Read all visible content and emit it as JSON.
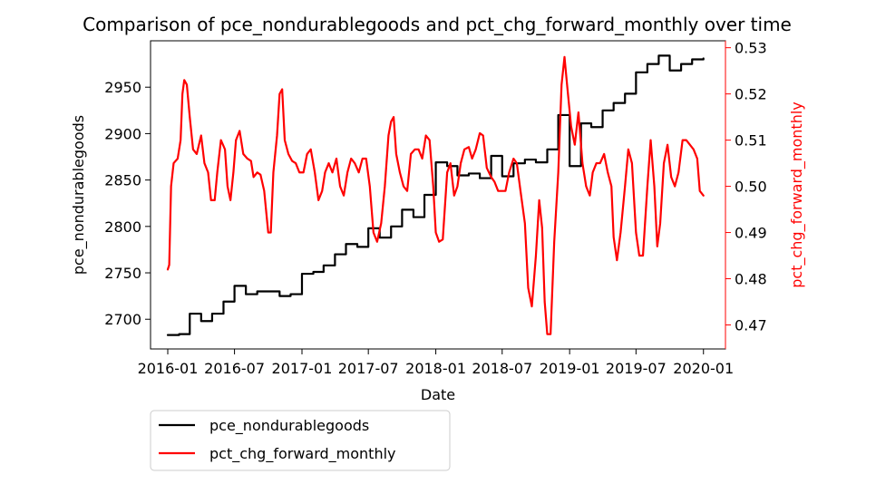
{
  "chart_data": {
    "type": "line",
    "title": "Comparison of pce_nondurablegoods and pct_chg_forward_monthly over time",
    "xlabel": "Date",
    "ylabel_left": "pce_nondurablegoods",
    "ylabel_right": "pct_chg_forward_monthly",
    "x_range": [
      "2015-11-15",
      "2020-03-01"
    ],
    "ylim_left": [
      2668,
      3000
    ],
    "ylim_right": [
      0.4648,
      0.5315
    ],
    "x_ticks": [
      "2016-01",
      "2016-07",
      "2017-01",
      "2017-07",
      "2018-01",
      "2018-07",
      "2019-01",
      "2019-07",
      "2020-01"
    ],
    "y_ticks_left": [
      2700,
      2750,
      2800,
      2850,
      2900,
      2950
    ],
    "y_ticks_right": [
      0.47,
      0.48,
      0.49,
      0.5,
      0.51,
      0.52,
      0.53
    ],
    "grid": false,
    "legend_position": "below-left",
    "colors": {
      "left_series": "#000000",
      "right_series": "#ff0000",
      "right_axis": "#ff0000"
    },
    "series": [
      {
        "name": "pce_nondurablegoods",
        "axis": "left",
        "step": true,
        "points": [
          [
            "2016-01-01",
            2683
          ],
          [
            "2016-02-01",
            2684
          ],
          [
            "2016-03-01",
            2706
          ],
          [
            "2016-04-01",
            2698
          ],
          [
            "2016-05-01",
            2706
          ],
          [
            "2016-06-01",
            2719
          ],
          [
            "2016-07-01",
            2736
          ],
          [
            "2016-08-01",
            2727
          ],
          [
            "2016-09-01",
            2730
          ],
          [
            "2016-10-01",
            2730
          ],
          [
            "2016-11-01",
            2725
          ],
          [
            "2016-12-01",
            2727
          ],
          [
            "2017-01-01",
            2749
          ],
          [
            "2017-02-01",
            2751
          ],
          [
            "2017-03-01",
            2758
          ],
          [
            "2017-04-01",
            2770
          ],
          [
            "2017-05-01",
            2781
          ],
          [
            "2017-06-01",
            2778
          ],
          [
            "2017-07-01",
            2798
          ],
          [
            "2017-08-01",
            2788
          ],
          [
            "2017-09-01",
            2800
          ],
          [
            "2017-10-01",
            2818
          ],
          [
            "2017-11-01",
            2810
          ],
          [
            "2017-12-01",
            2834
          ],
          [
            "2018-01-01",
            2869
          ],
          [
            "2018-02-01",
            2865
          ],
          [
            "2018-03-01",
            2855
          ],
          [
            "2018-04-01",
            2857
          ],
          [
            "2018-05-01",
            2852
          ],
          [
            "2018-06-01",
            2876
          ],
          [
            "2018-07-01",
            2854
          ],
          [
            "2018-08-01",
            2868
          ],
          [
            "2018-09-01",
            2872
          ],
          [
            "2018-10-01",
            2869
          ],
          [
            "2018-11-01",
            2883
          ],
          [
            "2018-12-01",
            2920
          ],
          [
            "2019-01-01",
            2865
          ],
          [
            "2019-02-01",
            2911
          ],
          [
            "2019-03-01",
            2907
          ],
          [
            "2019-04-01",
            2925
          ],
          [
            "2019-05-01",
            2933
          ],
          [
            "2019-06-01",
            2943
          ],
          [
            "2019-07-01",
            2966
          ],
          [
            "2019-08-01",
            2975
          ],
          [
            "2019-09-01",
            2984
          ],
          [
            "2019-10-01",
            2968
          ],
          [
            "2019-11-01",
            2975
          ],
          [
            "2019-12-01",
            2980
          ],
          [
            "2020-01-01",
            2981
          ]
        ]
      },
      {
        "name": "pct_chg_forward_monthly",
        "axis": "right",
        "step": false,
        "points": [
          [
            "2016-01-01",
            0.482
          ],
          [
            "2016-01-05",
            0.483
          ],
          [
            "2016-01-10",
            0.5
          ],
          [
            "2016-01-17",
            0.505
          ],
          [
            "2016-01-28",
            0.506
          ],
          [
            "2016-02-05",
            0.51
          ],
          [
            "2016-02-10",
            0.52
          ],
          [
            "2016-02-15",
            0.523
          ],
          [
            "2016-02-22",
            0.522
          ],
          [
            "2016-03-01",
            0.515
          ],
          [
            "2016-03-10",
            0.508
          ],
          [
            "2016-03-20",
            0.507
          ],
          [
            "2016-04-01",
            0.511
          ],
          [
            "2016-04-10",
            0.505
          ],
          [
            "2016-04-20",
            0.503
          ],
          [
            "2016-04-28",
            0.497
          ],
          [
            "2016-05-08",
            0.497
          ],
          [
            "2016-05-15",
            0.503
          ],
          [
            "2016-05-25",
            0.51
          ],
          [
            "2016-06-05",
            0.508
          ],
          [
            "2016-06-12",
            0.5
          ],
          [
            "2016-06-20",
            0.497
          ],
          [
            "2016-06-28",
            0.503
          ],
          [
            "2016-07-05",
            0.51
          ],
          [
            "2016-07-15",
            0.512
          ],
          [
            "2016-07-25",
            0.507
          ],
          [
            "2016-08-05",
            0.506
          ],
          [
            "2016-08-15",
            0.5055
          ],
          [
            "2016-08-22",
            0.502
          ],
          [
            "2016-09-01",
            0.503
          ],
          [
            "2016-09-10",
            0.5025
          ],
          [
            "2016-09-20",
            0.499
          ],
          [
            "2016-10-01",
            0.49
          ],
          [
            "2016-10-08",
            0.49
          ],
          [
            "2016-10-15",
            0.503
          ],
          [
            "2016-10-25",
            0.511
          ],
          [
            "2016-11-01",
            0.52
          ],
          [
            "2016-11-08",
            0.521
          ],
          [
            "2016-11-15",
            0.51
          ],
          [
            "2016-11-25",
            0.507
          ],
          [
            "2016-12-05",
            0.5055
          ],
          [
            "2016-12-15",
            0.505
          ],
          [
            "2016-12-25",
            0.503
          ],
          [
            "2017-01-05",
            0.503
          ],
          [
            "2017-01-15",
            0.507
          ],
          [
            "2017-01-25",
            0.508
          ],
          [
            "2017-02-05",
            0.503
          ],
          [
            "2017-02-15",
            0.497
          ],
          [
            "2017-02-25",
            0.499
          ],
          [
            "2017-03-05",
            0.503
          ],
          [
            "2017-03-15",
            0.505
          ],
          [
            "2017-03-25",
            0.503
          ],
          [
            "2017-04-05",
            0.506
          ],
          [
            "2017-04-15",
            0.5
          ],
          [
            "2017-04-25",
            0.498
          ],
          [
            "2017-05-05",
            0.503
          ],
          [
            "2017-05-15",
            0.506
          ],
          [
            "2017-05-25",
            0.505
          ],
          [
            "2017-06-05",
            0.503
          ],
          [
            "2017-06-15",
            0.506
          ],
          [
            "2017-06-25",
            0.506
          ],
          [
            "2017-07-05",
            0.5
          ],
          [
            "2017-07-15",
            0.49
          ],
          [
            "2017-07-25",
            0.488
          ],
          [
            "2017-08-05",
            0.492
          ],
          [
            "2017-08-15",
            0.5
          ],
          [
            "2017-08-25",
            0.511
          ],
          [
            "2017-09-01",
            0.514
          ],
          [
            "2017-09-08",
            0.515
          ],
          [
            "2017-09-15",
            0.507
          ],
          [
            "2017-09-25",
            0.503
          ],
          [
            "2017-10-05",
            0.5
          ],
          [
            "2017-10-15",
            0.499
          ],
          [
            "2017-10-25",
            0.507
          ],
          [
            "2017-11-05",
            0.508
          ],
          [
            "2017-11-15",
            0.508
          ],
          [
            "2017-11-25",
            0.506
          ],
          [
            "2017-12-05",
            0.511
          ],
          [
            "2017-12-15",
            0.51
          ],
          [
            "2017-12-25",
            0.5
          ],
          [
            "2018-01-01",
            0.49
          ],
          [
            "2018-01-10",
            0.488
          ],
          [
            "2018-01-20",
            0.4885
          ],
          [
            "2018-02-01",
            0.503
          ],
          [
            "2018-02-10",
            0.505
          ],
          [
            "2018-02-20",
            0.498
          ],
          [
            "2018-03-01",
            0.5
          ],
          [
            "2018-03-10",
            0.505
          ],
          [
            "2018-03-20",
            0.508
          ],
          [
            "2018-04-01",
            0.5085
          ],
          [
            "2018-04-10",
            0.506
          ],
          [
            "2018-04-20",
            0.508
          ],
          [
            "2018-05-01",
            0.5115
          ],
          [
            "2018-05-10",
            0.511
          ],
          [
            "2018-05-20",
            0.504
          ],
          [
            "2018-06-01",
            0.502
          ],
          [
            "2018-06-10",
            0.501
          ],
          [
            "2018-06-20",
            0.499
          ],
          [
            "2018-07-01",
            0.499
          ],
          [
            "2018-07-10",
            0.499
          ],
          [
            "2018-07-20",
            0.503
          ],
          [
            "2018-08-01",
            0.506
          ],
          [
            "2018-08-10",
            0.505
          ],
          [
            "2018-08-20",
            0.499
          ],
          [
            "2018-09-01",
            0.492
          ],
          [
            "2018-09-10",
            0.478
          ],
          [
            "2018-09-20",
            0.474
          ],
          [
            "2018-10-01",
            0.485
          ],
          [
            "2018-10-10",
            0.497
          ],
          [
            "2018-10-18",
            0.491
          ],
          [
            "2018-10-25",
            0.475
          ],
          [
            "2018-11-01",
            0.468
          ],
          [
            "2018-11-10",
            0.468
          ],
          [
            "2018-11-20",
            0.488
          ],
          [
            "2018-12-01",
            0.503
          ],
          [
            "2018-12-10",
            0.522
          ],
          [
            "2018-12-18",
            0.528
          ],
          [
            "2018-12-25",
            0.522
          ],
          [
            "2019-01-05",
            0.513
          ],
          [
            "2019-01-15",
            0.509
          ],
          [
            "2019-01-25",
            0.516
          ],
          [
            "2019-02-05",
            0.505
          ],
          [
            "2019-02-15",
            0.5
          ],
          [
            "2019-02-25",
            0.498
          ],
          [
            "2019-03-05",
            0.503
          ],
          [
            "2019-03-15",
            0.505
          ],
          [
            "2019-03-25",
            0.505
          ],
          [
            "2019-04-05",
            0.507
          ],
          [
            "2019-04-15",
            0.503
          ],
          [
            "2019-04-25",
            0.5
          ],
          [
            "2019-05-01",
            0.489
          ],
          [
            "2019-05-10",
            0.484
          ],
          [
            "2019-05-20",
            0.49
          ],
          [
            "2019-06-01",
            0.5
          ],
          [
            "2019-06-10",
            0.508
          ],
          [
            "2019-06-20",
            0.505
          ],
          [
            "2019-07-01",
            0.49
          ],
          [
            "2019-07-10",
            0.485
          ],
          [
            "2019-07-20",
            0.485
          ],
          [
            "2019-08-01",
            0.5
          ],
          [
            "2019-08-10",
            0.51
          ],
          [
            "2019-08-20",
            0.5
          ],
          [
            "2019-08-28",
            0.487
          ],
          [
            "2019-09-05",
            0.492
          ],
          [
            "2019-09-15",
            0.505
          ],
          [
            "2019-09-25",
            0.509
          ],
          [
            "2019-10-05",
            0.502
          ],
          [
            "2019-10-15",
            0.5
          ],
          [
            "2019-10-25",
            0.503
          ],
          [
            "2019-11-05",
            0.51
          ],
          [
            "2019-11-15",
            0.51
          ],
          [
            "2019-11-25",
            0.509
          ],
          [
            "2019-12-05",
            0.508
          ],
          [
            "2019-12-15",
            0.506
          ],
          [
            "2019-12-22",
            0.499
          ],
          [
            "2020-01-01",
            0.498
          ]
        ]
      }
    ]
  }
}
